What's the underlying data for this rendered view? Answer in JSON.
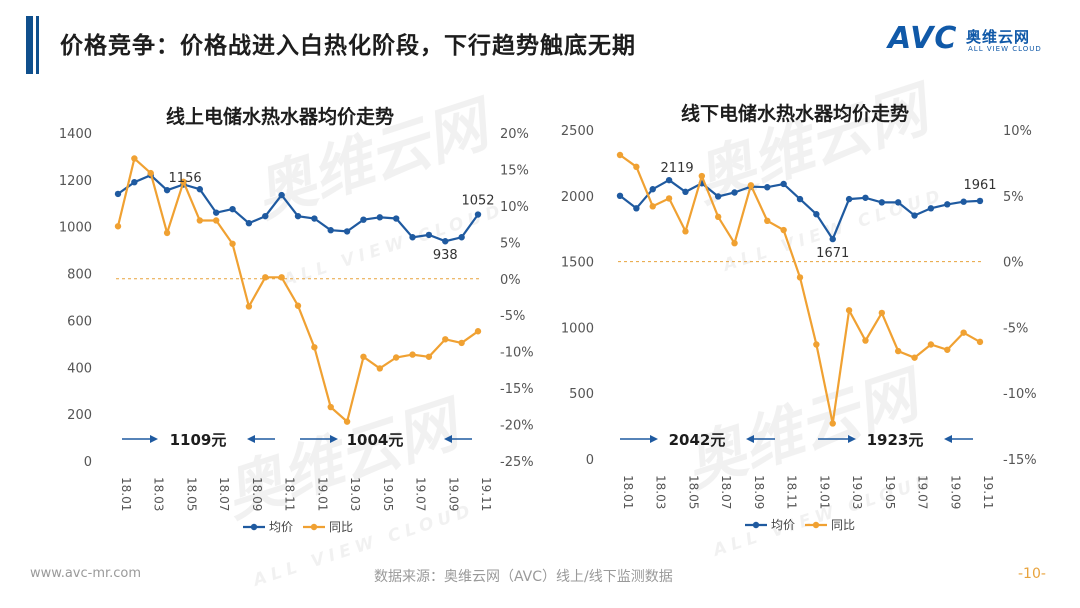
{
  "page": {
    "title": "价格竞争：价格战进入白热化阶段，下行趋势触底无期",
    "brand_mark": "AVC",
    "brand_cn": "奥维云网",
    "brand_en": "ALL VIEW CLOUD",
    "watermark_cn": "奥维云网",
    "watermark_en": "ALL VIEW CLOUD",
    "footer_url": "www.avc-mr.com",
    "footer_source": "数据来源：奥维云网（AVC）线上/线下监测数据",
    "page_number": "-10-"
  },
  "colors": {
    "price": "#1f5aa0",
    "yoy": "#f0a132",
    "zero_line": "#e8a33d",
    "arrow": "#1f5aa0",
    "title_bar": "#0f4f8c"
  },
  "chart_data": [
    {
      "type": "line",
      "title": "线上电储水热水器均价走势",
      "x_tick_labels": [
        "18.01",
        "18.03",
        "18.05",
        "18.07",
        "18.09",
        "18.11",
        "19.01",
        "19.03",
        "19.05",
        "19.07",
        "19.09",
        "19.11"
      ],
      "y_left": {
        "min": 0,
        "max": 1400,
        "ticks": [
          "0",
          "200",
          "400",
          "600",
          "800",
          "1000",
          "1200",
          "1400"
        ]
      },
      "y_right": {
        "min": -25,
        "max": 20,
        "ticks": [
          "-25%",
          "-20%",
          "-15%",
          "-10%",
          "-5%",
          "0%",
          "5%",
          "10%",
          "15%",
          "20%"
        ]
      },
      "series": [
        {
          "name": "均价",
          "axis": "left",
          "values": [
            1140,
            1190,
            1220,
            1156,
            1180,
            1160,
            1060,
            1075,
            1015,
            1045,
            1135,
            1045,
            1035,
            985,
            980,
            1030,
            1040,
            1035,
            955,
            965,
            938,
            955,
            1052
          ]
        },
        {
          "name": "同比",
          "axis": "right",
          "values": [
            7.2,
            16.5,
            14.5,
            6.3,
            13.3,
            8.0,
            8.0,
            4.8,
            -3.8,
            0.2,
            0.2,
            -3.7,
            -9.4,
            -17.6,
            -19.6,
            -10.7,
            -12.3,
            -10.8,
            -10.4,
            -10.7,
            -8.3,
            -8.8,
            -7.2
          ]
        }
      ],
      "data_labels": [
        {
          "index": 3,
          "text": "1156"
        },
        {
          "index": 20,
          "text": "938"
        },
        {
          "index": 22,
          "text": "1052"
        }
      ],
      "period_averages": [
        "1109元",
        "1004元"
      ],
      "legend": [
        "均价",
        "同比"
      ]
    },
    {
      "type": "line",
      "title": "线下电储水热水器均价走势",
      "x_tick_labels": [
        "18.01",
        "18.03",
        "18.05",
        "18.07",
        "18.09",
        "18.11",
        "19.01",
        "19.03",
        "19.05",
        "19.07",
        "19.09",
        "19.11"
      ],
      "y_left": {
        "min": 0,
        "max": 2500,
        "ticks": [
          "0",
          "500",
          "1000",
          "1500",
          "2000",
          "2500"
        ]
      },
      "y_right": {
        "min": -15,
        "max": 10,
        "ticks": [
          "-15%",
          "-10%",
          "-5%",
          "0%",
          "5%",
          "10%"
        ]
      },
      "series": [
        {
          "name": "均价",
          "axis": "left",
          "values": [
            2000,
            1905,
            2050,
            2119,
            2030,
            2095,
            1995,
            2025,
            2070,
            2065,
            2090,
            1975,
            1860,
            1671,
            1975,
            1985,
            1950,
            1950,
            1850,
            1905,
            1935,
            1955,
            1961
          ]
        },
        {
          "name": "同比",
          "axis": "right",
          "values": [
            8.1,
            7.2,
            4.2,
            4.8,
            2.3,
            6.5,
            3.4,
            1.4,
            5.8,
            3.1,
            2.4,
            -1.2,
            -6.3,
            -12.3,
            -3.7,
            -6.0,
            -3.9,
            -6.8,
            -7.3,
            -6.3,
            -6.7,
            -5.4,
            -6.1
          ]
        }
      ],
      "data_labels": [
        {
          "index": 3,
          "text": "2119"
        },
        {
          "index": 13,
          "text": "1671"
        },
        {
          "index": 22,
          "text": "1961"
        }
      ],
      "period_averages": [
        "2042元",
        "1923元"
      ],
      "legend": [
        "均价",
        "同比"
      ]
    }
  ]
}
